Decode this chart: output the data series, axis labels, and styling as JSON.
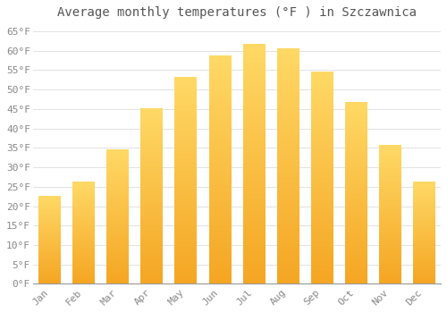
{
  "title": "Average monthly temperatures (°F ) in Szczawnica",
  "months": [
    "Jan",
    "Feb",
    "Mar",
    "Apr",
    "May",
    "Jun",
    "Jul",
    "Aug",
    "Sep",
    "Oct",
    "Nov",
    "Dec"
  ],
  "values": [
    22.5,
    26.0,
    34.5,
    45.0,
    53.0,
    58.5,
    61.5,
    60.5,
    54.5,
    46.5,
    35.5,
    26.0
  ],
  "bar_color_bottom": "#F5A623",
  "bar_color_top": "#FFD966",
  "background_color": "#FFFFFF",
  "grid_color": "#DDDDDD",
  "text_color": "#888888",
  "ylim": [
    0,
    67
  ],
  "yticks": [
    0,
    5,
    10,
    15,
    20,
    25,
    30,
    35,
    40,
    45,
    50,
    55,
    60,
    65
  ],
  "title_fontsize": 10,
  "tick_fontsize": 8
}
